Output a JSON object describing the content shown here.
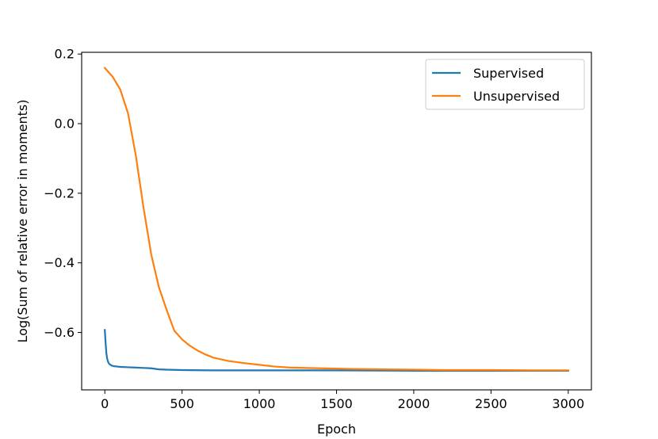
{
  "chart_data": {
    "type": "line",
    "title": "",
    "xlabel": "Epoch",
    "ylabel": "Log(Sum of relative error in moments)",
    "xlim": [
      -150,
      3150
    ],
    "ylim": [
      -0.765,
      0.205
    ],
    "xticks": [
      0,
      500,
      1000,
      1500,
      2000,
      2500,
      3000
    ],
    "xtick_labels": [
      "0",
      "500",
      "1000",
      "1500",
      "2000",
      "2500",
      "3000"
    ],
    "yticks": [
      0.2,
      0.0,
      -0.2,
      -0.4,
      -0.6
    ],
    "ytick_labels": [
      "0.2",
      "0.0",
      "−0.2",
      "−0.4",
      "−0.6"
    ],
    "grid": false,
    "legend_placement": "upper right",
    "series": [
      {
        "name": "Supervised",
        "color": "#1f77b4",
        "x": [
          0,
          5,
          10,
          15,
          20,
          25,
          30,
          40,
          50,
          60,
          80,
          100,
          150,
          200,
          250,
          300,
          330,
          350,
          400,
          500,
          700,
          1000,
          1500,
          2000,
          2500,
          3000
        ],
        "y": [
          -0.593,
          -0.63,
          -0.66,
          -0.675,
          -0.683,
          -0.688,
          -0.691,
          -0.694,
          -0.696,
          -0.697,
          -0.698,
          -0.699,
          -0.7,
          -0.701,
          -0.702,
          -0.703,
          -0.705,
          -0.706,
          -0.707,
          -0.708,
          -0.709,
          -0.709,
          -0.709,
          -0.71,
          -0.71,
          -0.71
        ]
      },
      {
        "name": "Unsupervised",
        "color": "#ff7f0e",
        "x": [
          0,
          50,
          100,
          150,
          200,
          250,
          300,
          350,
          400,
          450,
          500,
          550,
          600,
          650,
          700,
          800,
          900,
          1000,
          1100,
          1200,
          1400,
          1600,
          1800,
          2000,
          2200,
          2500,
          2800,
          3000
        ],
        "y": [
          0.16,
          0.135,
          0.098,
          0.03,
          -0.09,
          -0.24,
          -0.375,
          -0.47,
          -0.535,
          -0.595,
          -0.62,
          -0.638,
          -0.652,
          -0.663,
          -0.672,
          -0.682,
          -0.688,
          -0.693,
          -0.698,
          -0.701,
          -0.703,
          -0.705,
          -0.706,
          -0.707,
          -0.708,
          -0.708,
          -0.709,
          -0.709
        ]
      }
    ]
  }
}
